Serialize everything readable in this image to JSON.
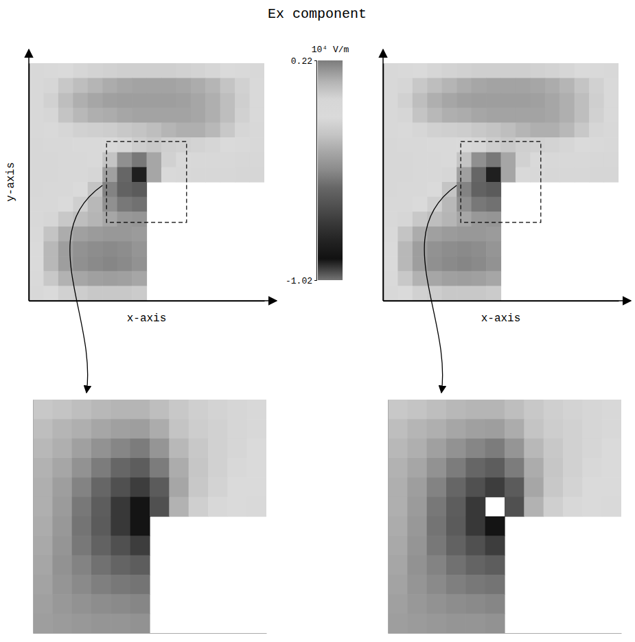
{
  "title": "Ex component",
  "colorbar": {
    "label": "10⁴ V/m",
    "range": [
      -1.02,
      0.22
    ],
    "ticks": [
      -1.02,
      0.22
    ]
  },
  "chart_data": [
    {
      "type": "heatmap",
      "xlabel": "x-axis",
      "ylabel": "y-axis",
      "xlim": [
        0,
        1
      ],
      "ylim": [
        0,
        1
      ],
      "tick_labels": false,
      "cells": [
        [
          -0.05,
          -0.07,
          -0.1,
          -0.12,
          -0.13,
          -0.14,
          -0.15,
          -0.15,
          -0.15,
          -0.15,
          -0.14,
          -0.13,
          -0.12,
          -0.1,
          -0.08,
          -0.05
        ],
        [
          -0.06,
          -0.12,
          -0.18,
          -0.22,
          -0.25,
          -0.28,
          -0.3,
          -0.31,
          -0.31,
          -0.31,
          -0.3,
          -0.28,
          -0.25,
          -0.2,
          -0.14,
          -0.08
        ],
        [
          -0.06,
          -0.14,
          -0.22,
          -0.27,
          -0.3,
          -0.32,
          -0.33,
          -0.33,
          -0.33,
          -0.33,
          -0.32,
          -0.3,
          -0.27,
          -0.22,
          -0.15,
          -0.08
        ],
        [
          -0.05,
          -0.12,
          -0.2,
          -0.24,
          -0.27,
          -0.28,
          -0.3,
          -0.31,
          -0.31,
          -0.31,
          -0.31,
          -0.3,
          -0.27,
          -0.22,
          -0.14,
          -0.07
        ],
        [
          -0.04,
          -0.08,
          -0.12,
          -0.14,
          -0.15,
          -0.16,
          -0.18,
          -0.2,
          -0.22,
          -0.25,
          -0.27,
          -0.27,
          -0.24,
          -0.18,
          -0.12,
          -0.06
        ],
        [
          -0.03,
          -0.05,
          -0.06,
          -0.07,
          -0.07,
          -0.08,
          -0.12,
          -0.16,
          -0.18,
          -0.15,
          -0.14,
          -0.13,
          -0.12,
          -0.1,
          -0.07,
          -0.04
        ],
        [
          -0.02,
          -0.03,
          -0.04,
          -0.05,
          -0.08,
          -0.2,
          -0.38,
          -0.45,
          -0.3,
          -0.14,
          -0.08,
          -0.06,
          -0.05,
          -0.04,
          -0.03,
          -0.02
        ],
        [
          -0.02,
          -0.03,
          -0.04,
          -0.06,
          -0.12,
          -0.32,
          -0.5,
          -0.82,
          -0.3,
          -0.08,
          -0.04,
          -0.03,
          -0.02,
          -0.02,
          -0.01,
          -0.01
        ],
        [
          -0.03,
          -0.04,
          -0.06,
          -0.1,
          -0.2,
          -0.42,
          -0.52,
          -0.55,
          null,
          null,
          null,
          null,
          null,
          null,
          null,
          null
        ],
        [
          -0.04,
          -0.06,
          -0.1,
          -0.15,
          -0.24,
          -0.38,
          -0.45,
          -0.47,
          null,
          null,
          null,
          null,
          null,
          null,
          null,
          null
        ],
        [
          -0.06,
          -0.12,
          -0.18,
          -0.22,
          -0.25,
          -0.3,
          -0.35,
          -0.36,
          null,
          null,
          null,
          null,
          null,
          null,
          null,
          null
        ],
        [
          -0.08,
          -0.2,
          -0.28,
          -0.32,
          -0.34,
          -0.35,
          -0.35,
          -0.34,
          null,
          null,
          null,
          null,
          null,
          null,
          null,
          null
        ],
        [
          -0.1,
          -0.24,
          -0.33,
          -0.37,
          -0.39,
          -0.4,
          -0.39,
          -0.36,
          null,
          null,
          null,
          null,
          null,
          null,
          null,
          null
        ],
        [
          -0.1,
          -0.24,
          -0.33,
          -0.38,
          -0.4,
          -0.41,
          -0.4,
          -0.37,
          null,
          null,
          null,
          null,
          null,
          null,
          null,
          null
        ],
        [
          -0.08,
          -0.18,
          -0.26,
          -0.3,
          -0.32,
          -0.33,
          -0.32,
          -0.3,
          null,
          null,
          null,
          null,
          null,
          null,
          null,
          null
        ],
        [
          -0.05,
          -0.1,
          -0.14,
          -0.16,
          -0.18,
          -0.18,
          -0.18,
          -0.17,
          null,
          null,
          null,
          null,
          null,
          null,
          null,
          null
        ]
      ]
    },
    {
      "type": "heatmap",
      "xlabel": "x-axis",
      "xlim": [
        0,
        1
      ],
      "ylim": [
        0,
        1
      ],
      "tick_labels": false,
      "cells": [
        [
          -0.05,
          -0.07,
          -0.1,
          -0.12,
          -0.13,
          -0.14,
          -0.15,
          -0.15,
          -0.15,
          -0.15,
          -0.14,
          -0.13,
          -0.12,
          -0.1,
          -0.08,
          -0.05
        ],
        [
          -0.06,
          -0.12,
          -0.18,
          -0.22,
          -0.25,
          -0.28,
          -0.3,
          -0.31,
          -0.31,
          -0.31,
          -0.3,
          -0.28,
          -0.25,
          -0.2,
          -0.14,
          -0.08
        ],
        [
          -0.06,
          -0.14,
          -0.22,
          -0.27,
          -0.3,
          -0.32,
          -0.33,
          -0.33,
          -0.33,
          -0.33,
          -0.32,
          -0.3,
          -0.27,
          -0.22,
          -0.15,
          -0.08
        ],
        [
          -0.05,
          -0.12,
          -0.2,
          -0.24,
          -0.27,
          -0.28,
          -0.3,
          -0.31,
          -0.31,
          -0.31,
          -0.31,
          -0.3,
          -0.27,
          -0.22,
          -0.14,
          -0.07
        ],
        [
          -0.04,
          -0.08,
          -0.12,
          -0.14,
          -0.15,
          -0.16,
          -0.18,
          -0.2,
          -0.22,
          -0.25,
          -0.27,
          -0.27,
          -0.24,
          -0.18,
          -0.12,
          -0.06
        ],
        [
          -0.03,
          -0.05,
          -0.06,
          -0.07,
          -0.07,
          -0.08,
          -0.12,
          -0.16,
          -0.18,
          -0.15,
          -0.14,
          -0.13,
          -0.12,
          -0.1,
          -0.07,
          -0.04
        ],
        [
          -0.02,
          -0.03,
          -0.04,
          -0.05,
          -0.08,
          -0.2,
          -0.38,
          -0.45,
          -0.3,
          -0.14,
          -0.08,
          -0.06,
          -0.05,
          -0.04,
          -0.03,
          -0.02
        ],
        [
          -0.02,
          -0.03,
          -0.04,
          -0.06,
          -0.12,
          -0.32,
          -0.5,
          -0.82,
          -0.3,
          -0.08,
          -0.04,
          -0.03,
          -0.02,
          -0.02,
          -0.01,
          -0.01
        ],
        [
          -0.03,
          -0.04,
          -0.06,
          -0.1,
          -0.2,
          -0.42,
          -0.52,
          -0.55,
          null,
          null,
          null,
          null,
          null,
          null,
          null,
          null
        ],
        [
          -0.04,
          -0.06,
          -0.1,
          -0.15,
          -0.24,
          -0.38,
          -0.45,
          -0.47,
          null,
          null,
          null,
          null,
          null,
          null,
          null,
          null
        ],
        [
          -0.06,
          -0.12,
          -0.18,
          -0.22,
          -0.25,
          -0.3,
          -0.35,
          -0.36,
          null,
          null,
          null,
          null,
          null,
          null,
          null,
          null
        ],
        [
          -0.08,
          -0.2,
          -0.28,
          -0.32,
          -0.34,
          -0.35,
          -0.35,
          -0.34,
          null,
          null,
          null,
          null,
          null,
          null,
          null,
          null
        ],
        [
          -0.1,
          -0.24,
          -0.33,
          -0.37,
          -0.39,
          -0.4,
          -0.39,
          -0.36,
          null,
          null,
          null,
          null,
          null,
          null,
          null,
          null
        ],
        [
          -0.1,
          -0.24,
          -0.33,
          -0.38,
          -0.4,
          -0.41,
          -0.4,
          -0.37,
          null,
          null,
          null,
          null,
          null,
          null,
          null,
          null
        ],
        [
          -0.08,
          -0.18,
          -0.26,
          -0.3,
          -0.32,
          -0.33,
          -0.32,
          -0.3,
          null,
          null,
          null,
          null,
          null,
          null,
          null,
          null
        ],
        [
          -0.05,
          -0.1,
          -0.14,
          -0.16,
          -0.18,
          -0.18,
          -0.18,
          -0.17,
          null,
          null,
          null,
          null,
          null,
          null,
          null,
          null
        ]
      ]
    },
    {
      "type": "heatmap",
      "xlim": [
        0.33,
        0.67
      ],
      "ylim": [
        0.33,
        0.67
      ],
      "tick_labels": false,
      "cells": [
        [
          -0.18,
          -0.2,
          -0.22,
          -0.24,
          -0.25,
          -0.25,
          -0.22,
          -0.18,
          -0.15,
          -0.13,
          -0.12,
          -0.11
        ],
        [
          -0.22,
          -0.25,
          -0.27,
          -0.3,
          -0.32,
          -0.33,
          -0.28,
          -0.2,
          -0.16,
          -0.14,
          -0.12,
          -0.11
        ],
        [
          -0.24,
          -0.27,
          -0.32,
          -0.37,
          -0.41,
          -0.44,
          -0.36,
          -0.24,
          -0.18,
          -0.14,
          -0.12,
          -0.1
        ],
        [
          -0.26,
          -0.3,
          -0.37,
          -0.44,
          -0.5,
          -0.54,
          -0.44,
          -0.28,
          -0.19,
          -0.14,
          -0.11,
          -0.1
        ],
        [
          -0.27,
          -0.33,
          -0.42,
          -0.5,
          -0.6,
          -0.68,
          -0.55,
          -0.3,
          -0.18,
          -0.13,
          -0.1,
          -0.09
        ],
        [
          -0.27,
          -0.34,
          -0.45,
          -0.54,
          -0.7,
          -0.88,
          -0.6,
          -0.26,
          -0.15,
          -0.11,
          -0.09,
          -0.08
        ],
        [
          -0.28,
          -0.35,
          -0.46,
          -0.55,
          -0.7,
          -0.88,
          null,
          null,
          null,
          null,
          null,
          null
        ],
        [
          -0.29,
          -0.36,
          -0.45,
          -0.52,
          -0.6,
          -0.68,
          null,
          null,
          null,
          null,
          null,
          null
        ],
        [
          -0.3,
          -0.37,
          -0.42,
          -0.47,
          -0.51,
          -0.54,
          null,
          null,
          null,
          null,
          null,
          null
        ],
        [
          -0.31,
          -0.36,
          -0.4,
          -0.43,
          -0.45,
          -0.46,
          null,
          null,
          null,
          null,
          null,
          null
        ],
        [
          -0.32,
          -0.35,
          -0.37,
          -0.39,
          -0.4,
          -0.41,
          null,
          null,
          null,
          null,
          null,
          null
        ],
        [
          -0.33,
          -0.34,
          -0.35,
          -0.36,
          -0.36,
          -0.37,
          null,
          null,
          null,
          null,
          null,
          null
        ]
      ]
    },
    {
      "type": "heatmap",
      "xlim": [
        0.33,
        0.67
      ],
      "ylim": [
        0.33,
        0.67
      ],
      "tick_labels": false,
      "cells": [
        [
          -0.18,
          -0.2,
          -0.22,
          -0.24,
          -0.25,
          -0.25,
          -0.22,
          -0.18,
          -0.15,
          -0.13,
          -0.12,
          -0.11
        ],
        [
          -0.22,
          -0.25,
          -0.27,
          -0.3,
          -0.32,
          -0.33,
          -0.28,
          -0.2,
          -0.16,
          -0.14,
          -0.12,
          -0.11
        ],
        [
          -0.24,
          -0.27,
          -0.32,
          -0.37,
          -0.41,
          -0.44,
          -0.36,
          -0.24,
          -0.18,
          -0.14,
          -0.12,
          -0.1
        ],
        [
          -0.26,
          -0.3,
          -0.37,
          -0.44,
          -0.5,
          -0.54,
          -0.44,
          -0.28,
          -0.19,
          -0.14,
          -0.11,
          -0.1
        ],
        [
          -0.27,
          -0.33,
          -0.42,
          -0.5,
          -0.6,
          -0.68,
          -0.55,
          -0.3,
          -0.18,
          -0.13,
          -0.1,
          -0.09
        ],
        [
          -0.27,
          -0.34,
          -0.45,
          -0.54,
          -0.7,
          null,
          -0.6,
          -0.26,
          -0.15,
          -0.11,
          -0.09,
          -0.08
        ],
        [
          -0.28,
          -0.35,
          -0.46,
          -0.55,
          -0.7,
          -0.88,
          null,
          null,
          null,
          null,
          null,
          null
        ],
        [
          -0.29,
          -0.36,
          -0.45,
          -0.52,
          -0.6,
          -0.68,
          null,
          null,
          null,
          null,
          null,
          null
        ],
        [
          -0.3,
          -0.37,
          -0.42,
          -0.47,
          -0.51,
          -0.54,
          null,
          null,
          null,
          null,
          null,
          null
        ],
        [
          -0.31,
          -0.36,
          -0.4,
          -0.43,
          -0.45,
          -0.46,
          null,
          null,
          null,
          null,
          null,
          null
        ],
        [
          -0.32,
          -0.35,
          -0.37,
          -0.39,
          -0.4,
          -0.41,
          null,
          null,
          null,
          null,
          null,
          null
        ],
        [
          -0.33,
          -0.34,
          -0.35,
          -0.36,
          -0.36,
          -0.37,
          null,
          null,
          null,
          null,
          null,
          null
        ]
      ]
    }
  ]
}
